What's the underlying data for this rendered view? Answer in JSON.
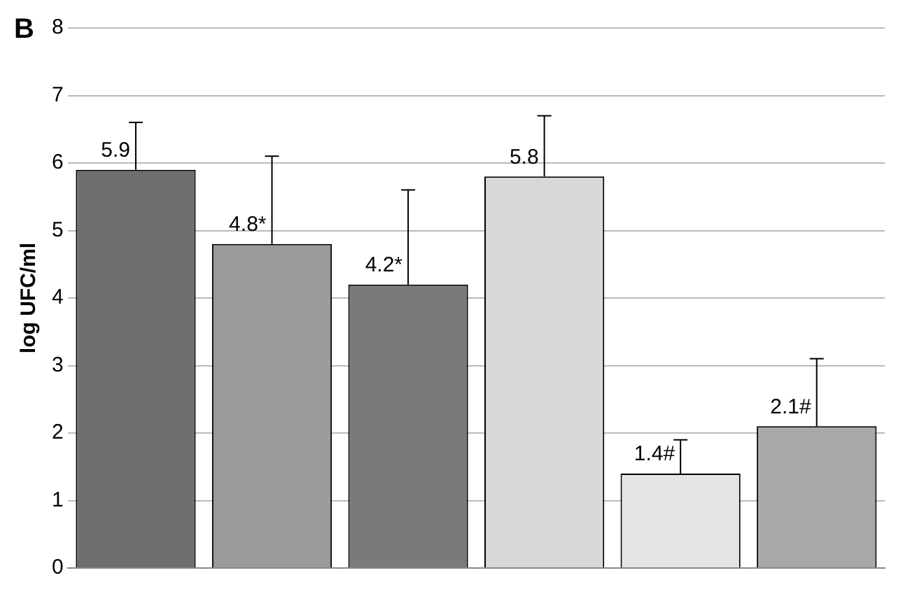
{
  "chart_data": {
    "type": "bar",
    "annotations": [
      "B"
    ],
    "ylabel": "log UFC/ml",
    "categories": [
      null,
      null,
      null,
      null,
      null,
      null
    ],
    "values": [
      5.9,
      4.8,
      4.2,
      5.8,
      1.4,
      2.1
    ],
    "errors": [
      [
        5.9,
        6.6
      ],
      [
        4.8,
        6.1
      ],
      [
        4.2,
        5.6
      ],
      [
        5.8,
        6.7
      ],
      [
        1.4,
        1.9
      ],
      [
        2.1,
        3.1
      ]
    ],
    "value_labels": [
      "5.9",
      "4.8*",
      "4.2*",
      "5.8",
      "1.4#",
      "2.1#"
    ],
    "colors": [
      "#6e6e6e",
      "#9a9a9a",
      "#7a7a7a",
      "#d8d8d8",
      "#e4e4e4",
      "#a8a8a8"
    ],
    "ylim": [
      0,
      8
    ],
    "yticks": [
      0,
      1,
      2,
      3,
      4,
      5,
      6,
      7,
      8
    ],
    "grid": "y",
    "legend": false
  }
}
